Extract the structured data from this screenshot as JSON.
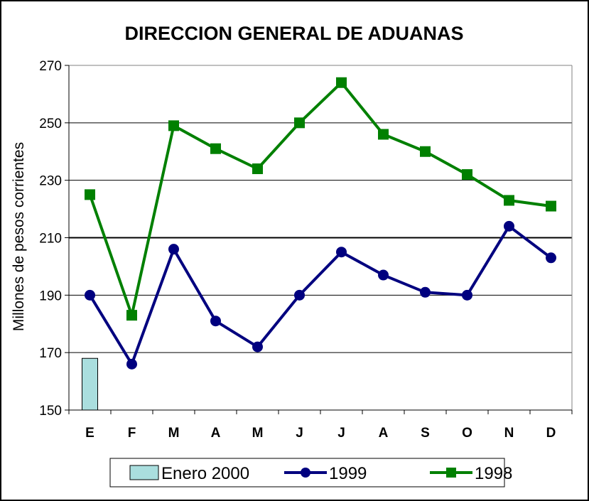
{
  "chart_data": {
    "type": "line",
    "title": "DIRECCION GENERAL DE ADUANAS",
    "xlabel": "",
    "ylabel": "Millones de pesos corrientes",
    "categories": [
      "E",
      "F",
      "M",
      "A",
      "M",
      "J",
      "J",
      "A",
      "S",
      "O",
      "N",
      "D"
    ],
    "ylim": [
      150,
      270
    ],
    "yticks": [
      150,
      170,
      190,
      210,
      230,
      250,
      270
    ],
    "grid": true,
    "legend_position": "bottom",
    "series": [
      {
        "name": "Enero 2000",
        "type": "bar",
        "color": "#aadede",
        "values": [
          168,
          null,
          null,
          null,
          null,
          null,
          null,
          null,
          null,
          null,
          null,
          null
        ]
      },
      {
        "name": "1999",
        "type": "line",
        "marker": "circle",
        "color": "#00007f",
        "values": [
          190,
          166,
          206,
          181,
          172,
          190,
          205,
          197,
          191,
          190,
          214,
          203
        ]
      },
      {
        "name": "1998",
        "type": "line",
        "marker": "square",
        "color": "#008000",
        "values": [
          225,
          183,
          249,
          241,
          234,
          250,
          264,
          246,
          240,
          232,
          223,
          221
        ]
      }
    ]
  }
}
